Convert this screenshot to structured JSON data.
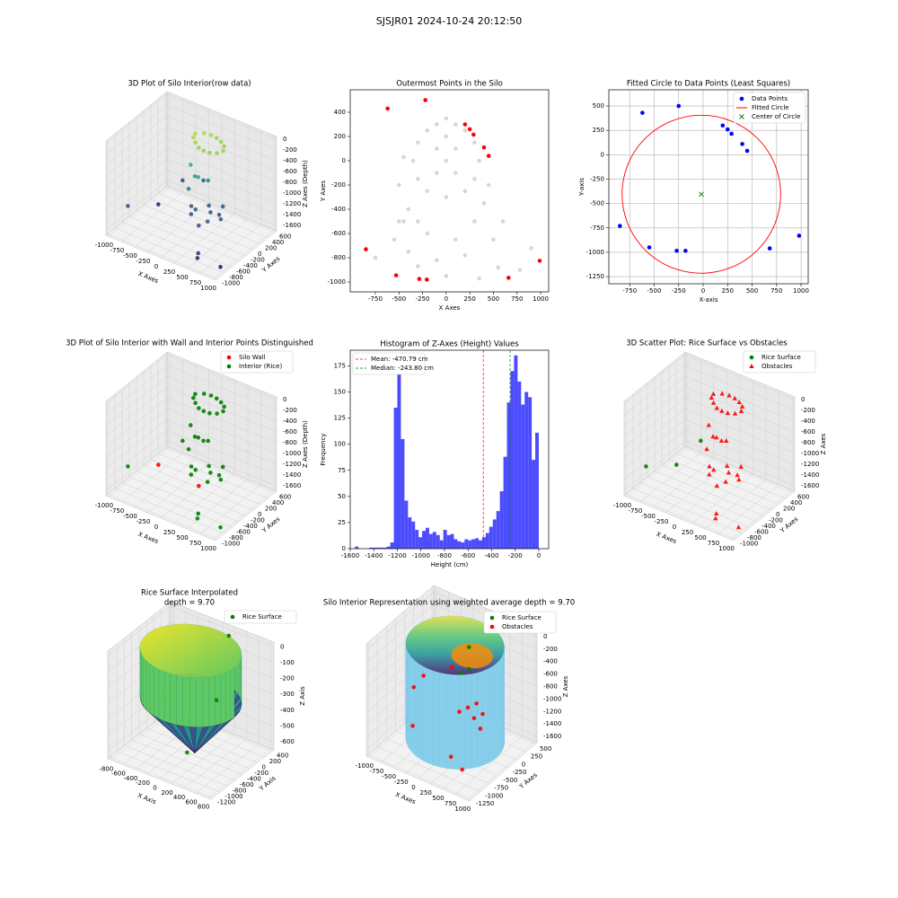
{
  "title": "SJSJR01 2024-10-24 20:12:50",
  "chart_data": [
    {
      "type": "scatter3d",
      "title": "3D Plot of Silo Interior(row data)",
      "xlabel": "X Axes",
      "ylabel": "Y Axes",
      "zlabel": "Z Axes (Depth)",
      "colormap": "viridis",
      "xlim": [
        -1050,
        1050
      ],
      "ylim": [
        -1050,
        650
      ],
      "zlim": [
        -1700,
        50
      ],
      "xticks": [
        -1000,
        -750,
        -500,
        -250,
        0,
        250,
        500,
        750,
        1000
      ],
      "yticks": [
        -1000,
        -800,
        -600,
        -400,
        -200,
        0,
        200,
        400,
        600
      ],
      "zticks": [
        -1600,
        -1400,
        -1200,
        -1000,
        -800,
        -600,
        -400,
        -200,
        0
      ],
      "series": [
        {
          "marker": "o",
          "x": [
            -200,
            -100,
            0,
            100,
            200,
            300,
            350,
            300,
            200,
            100,
            0,
            -100,
            -180,
            -150,
            0,
            150,
            -50,
            100,
            0,
            150,
            300,
            450,
            600,
            200,
            350,
            500,
            100,
            400,
            -850,
            -600,
            -700,
            -250,
            660,
            990,
            600
          ],
          "y": [
            200,
            300,
            350,
            360,
            340,
            280,
            180,
            80,
            20,
            0,
            10,
            60,
            120,
            0,
            -100,
            50,
            -200,
            -150,
            -200,
            -300,
            -100,
            -400,
            -250,
            0,
            -500,
            -150,
            -350,
            100,
            -730,
            430,
            -100,
            500,
            -965,
            -825,
            -900
          ],
          "z": [
            -150,
            -160,
            -180,
            -200,
            -220,
            -230,
            -240,
            -250,
            -250,
            -240,
            -230,
            -200,
            -170,
            -600,
            -700,
            -800,
            -900,
            -650,
            -1200,
            -1150,
            -1250,
            -1200,
            -1180,
            -1220,
            -1260,
            -1190,
            -1230,
            -1210,
            -1250,
            -1300,
            -1500,
            -1200,
            -1400,
            -1600,
            -1550
          ]
        }
      ]
    },
    {
      "type": "scatter",
      "title": "Outermost Points in the Silo",
      "xlabel": "X Axes",
      "ylabel": "Y Axes",
      "xlim": [
        -1016,
        1085
      ],
      "ylim": [
        -1081,
        585
      ],
      "xticks": [
        -750,
        -500,
        -250,
        0,
        250,
        500,
        750,
        1000
      ],
      "yticks": [
        -1000,
        -800,
        -600,
        -400,
        -200,
        0,
        200,
        400
      ],
      "series": [
        {
          "color": "lightgray",
          "marker": "o",
          "x": [
            0,
            -100,
            100,
            -200,
            200,
            -300,
            300,
            -350,
            350,
            -300,
            300,
            -200,
            200,
            0,
            0,
            -100,
            100,
            -100,
            100,
            0,
            -450,
            -500,
            450,
            -400,
            400,
            -300,
            300,
            -200,
            100,
            -450,
            -550,
            -400,
            -100,
            200,
            500,
            550,
            780,
            900,
            -750,
            -300,
            0,
            350,
            -500,
            600
          ],
          "y": [
            350,
            300,
            300,
            250,
            250,
            150,
            150,
            0,
            0,
            -150,
            -150,
            -250,
            -250,
            -300,
            0,
            100,
            100,
            -100,
            -100,
            200,
            30,
            -200,
            -200,
            -400,
            -350,
            -500,
            -500,
            -600,
            -650,
            -500,
            -650,
            -750,
            -820,
            -780,
            -650,
            -880,
            -900,
            -720,
            -800,
            -870,
            -950,
            -970,
            -500,
            -500
          ]
        },
        {
          "color": "red",
          "marker": "o",
          "x": [
            -620,
            -220,
            200,
            250,
            290,
            400,
            450,
            -850,
            -530,
            -285,
            -205,
            660,
            990
          ],
          "y": [
            430,
            500,
            300,
            260,
            215,
            110,
            40,
            -730,
            -945,
            -975,
            -980,
            -965,
            -825
          ]
        }
      ]
    },
    {
      "type": "scatter",
      "title": "Fitted Circle to Data Points (Least Squares)",
      "xlabel": "X-axis",
      "ylabel": "Y-axis",
      "grid": true,
      "legend": "upper right",
      "xlim": [
        -963,
        1073
      ],
      "ylim": [
        -1323,
        666
      ],
      "xticks": [
        -750,
        -500,
        -250,
        0,
        250,
        500,
        750,
        1000
      ],
      "yticks": [
        -1250,
        -1000,
        -750,
        -500,
        -250,
        0,
        250,
        500
      ],
      "series": [
        {
          "name": "Data Points",
          "color": "blue",
          "marker": "o",
          "x": [
            -620,
            -250,
            200,
            250,
            290,
            400,
            450,
            -850,
            -550,
            -270,
            -180,
            680,
            980
          ],
          "y": [
            430,
            500,
            300,
            260,
            215,
            110,
            40,
            -730,
            -950,
            -985,
            -985,
            -960,
            -830
          ]
        },
        {
          "name": "Center of Circle",
          "color": "green",
          "marker": "x",
          "x": [
            -18
          ],
          "y": [
            -405
          ]
        }
      ],
      "circle": {
        "name": "Fitted Circle",
        "color": "red",
        "center": [
          -18,
          -405
        ],
        "radius": 810
      }
    },
    {
      "type": "scatter3d",
      "title": "3D Plot of Silo Interior with Wall and Interior Points Distinguished",
      "xlabel": "X Axes",
      "ylabel": "Y Axes",
      "zlabel": "Z Axes (Depth)",
      "legend": "upper right",
      "xlim": [
        -1050,
        1050
      ],
      "ylim": [
        -1050,
        650
      ],
      "zlim": [
        -1700,
        50
      ],
      "xticks": [
        -1000,
        -750,
        -500,
        -250,
        0,
        250,
        500,
        750,
        1000
      ],
      "yticks": [
        -1000,
        -800,
        -600,
        -400,
        -200,
        0,
        200,
        400,
        600
      ],
      "zticks": [
        -1600,
        -1400,
        -1200,
        -1000,
        -800,
        -600,
        -400,
        -200,
        0
      ],
      "series": [
        {
          "name": "Silo Wall",
          "color": "red",
          "marker": "o",
          "x": [
            -700,
            350
          ],
          "y": [
            -100,
            -500
          ],
          "z": [
            -1500,
            -1260
          ]
        },
        {
          "name": "Interior (Rice)",
          "color": "green",
          "marker": "o",
          "x": [
            -200,
            -100,
            0,
            100,
            200,
            300,
            350,
            300,
            200,
            100,
            0,
            -100,
            -180,
            -150,
            0,
            150,
            -50,
            100,
            0,
            150,
            300,
            450,
            600,
            200,
            500,
            100,
            400,
            -850,
            -600,
            -250,
            660,
            990,
            600
          ],
          "y": [
            200,
            300,
            350,
            360,
            340,
            280,
            180,
            80,
            20,
            0,
            10,
            60,
            120,
            0,
            -100,
            50,
            -200,
            -150,
            -200,
            -300,
            -100,
            -400,
            -250,
            0,
            -150,
            -350,
            100,
            -730,
            430,
            500,
            -965,
            -825,
            -900
          ],
          "z": [
            -150,
            -160,
            -180,
            -200,
            -220,
            -230,
            -240,
            -250,
            -250,
            -240,
            -230,
            -200,
            -170,
            -600,
            -700,
            -800,
            -900,
            -650,
            -1200,
            -1150,
            -1250,
            -1200,
            -1180,
            -1220,
            -1190,
            -1230,
            -1210,
            -1250,
            -1300,
            -1200,
            -1400,
            -1600,
            -1550
          ]
        }
      ]
    },
    {
      "type": "histogram",
      "title": "Histogram of Z-Axes (Height) Values",
      "xlabel": "Height (cm)",
      "ylabel": "Frequency",
      "color": "#4c4cff",
      "legend": "upper left",
      "xlim": [
        -1600,
        84
      ],
      "ylim": [
        0,
        190
      ],
      "xticks": [
        -1600,
        -1400,
        -1200,
        -1000,
        -800,
        -600,
        -400,
        -200,
        0
      ],
      "yticks": [
        0,
        25,
        50,
        75,
        100,
        125,
        150,
        175
      ],
      "bins": [
        -1560,
        -1530,
        -1500,
        -1470,
        -1440,
        -1410,
        -1380,
        -1350,
        -1320,
        -1290,
        -1260,
        -1230,
        -1200,
        -1170,
        -1140,
        -1110,
        -1080,
        -1050,
        -1020,
        -990,
        -960,
        -930,
        -900,
        -870,
        -840,
        -810,
        -780,
        -750,
        -720,
        -690,
        -660,
        -630,
        -600,
        -570,
        -540,
        -510,
        -480,
        -450,
        -420,
        -390,
        -360,
        -330,
        -300,
        -270,
        -240,
        -210,
        -180,
        -150,
        -120,
        -90,
        -60,
        -30,
        0
      ],
      "counts": [
        2,
        0,
        0,
        0,
        1,
        1,
        1,
        1,
        1,
        2,
        6,
        135,
        172,
        105,
        46,
        30,
        26,
        18,
        11,
        17,
        20,
        14,
        16,
        13,
        8,
        18,
        13,
        14,
        9,
        7,
        6,
        9,
        8,
        9,
        10,
        8,
        11,
        15,
        21,
        28,
        36,
        55,
        88,
        140,
        170,
        185,
        160,
        138,
        150,
        145,
        85,
        111
      ],
      "mean": {
        "value": -470.79,
        "label": "Mean: -470.79 cm",
        "color": "red"
      },
      "median": {
        "value": -243.8,
        "label": "Median: -243.80 cm",
        "color": "green"
      }
    },
    {
      "type": "scatter3d",
      "title": "3D Scatter Plot: Rice Surface vs Obstacles",
      "xlabel": "X Axes",
      "ylabel": "Y Axes",
      "zlabel": "Z Axes",
      "legend": "upper right",
      "xlim": [
        -1050,
        1050
      ],
      "ylim": [
        -1050,
        650
      ],
      "zlim": [
        -1700,
        50
      ],
      "xticks": [
        -1000,
        -750,
        -500,
        -250,
        0,
        250,
        500,
        750,
        1000
      ],
      "yticks": [
        -1000,
        -800,
        -600,
        -400,
        -200,
        0,
        200,
        400,
        600
      ],
      "zticks": [
        -1600,
        -1400,
        -1200,
        -1000,
        -800,
        -600,
        -400,
        -200,
        0
      ],
      "series": [
        {
          "name": "Rice Surface",
          "color": "green",
          "marker": "o",
          "x": [
            -700,
            -600,
            -850
          ],
          "y": [
            -100,
            430,
            -730
          ],
          "z": [
            -1500,
            -1300,
            -1250
          ]
        },
        {
          "name": "Obstacles",
          "color": "red",
          "marker": "^",
          "x": [
            -200,
            -100,
            0,
            100,
            200,
            300,
            350,
            300,
            200,
            100,
            0,
            -100,
            -180,
            -150,
            0,
            150,
            -50,
            100,
            0,
            150,
            300,
            450,
            600,
            200,
            350,
            500,
            100,
            400,
            -250,
            660,
            990,
            600
          ],
          "y": [
            200,
            300,
            350,
            360,
            340,
            280,
            180,
            80,
            20,
            0,
            10,
            60,
            120,
            0,
            -100,
            50,
            -200,
            -150,
            -200,
            -300,
            -100,
            -400,
            -250,
            0,
            -500,
            -150,
            -350,
            100,
            500,
            -965,
            -825,
            -900
          ],
          "z": [
            -150,
            -160,
            -180,
            -200,
            -220,
            -230,
            -240,
            -250,
            -250,
            -240,
            -230,
            -200,
            -170,
            -600,
            -700,
            -800,
            -900,
            -650,
            -1200,
            -1150,
            -1250,
            -1200,
            -1180,
            -1220,
            -1260,
            -1190,
            -1230,
            -1210,
            -1200,
            -1400,
            -1600,
            -1550
          ]
        }
      ]
    },
    {
      "type": "surface3d",
      "title": [
        "Rice Surface Interpolated",
        "depth = 9.70"
      ],
      "xlabel": "X Axis",
      "ylabel": "Y Axis",
      "zlabel": "Z Axis",
      "legend": "upper right",
      "xlim": [
        -850,
        850
      ],
      "ylim": [
        -1250,
        450
      ],
      "zlim": [
        -650,
        30
      ],
      "xticks": [
        -800,
        -600,
        -400,
        -200,
        0,
        200,
        400,
        600,
        800
      ],
      "yticks": [
        -1200,
        -1000,
        -800,
        -600,
        -400,
        -200,
        0,
        200,
        400
      ],
      "zticks": [
        -600,
        -500,
        -400,
        -300,
        -200,
        -100,
        0
      ],
      "series": [
        {
          "name": "Rice Surface",
          "color": "green",
          "marker": "o",
          "x": [
            200,
            300,
            0
          ],
          "y": [
            300,
            -200,
            -500
          ],
          "z": [
            0,
            -300,
            -620
          ]
        }
      ]
    },
    {
      "type": "cylinder3d",
      "title": "Silo Interior Representation using weighted average depth = 9.70",
      "xlabel": "X Axes",
      "ylabel": "Y Axes",
      "zlabel": "Z Axes",
      "legend": "upper right",
      "xlim": [
        -1050,
        1050
      ],
      "ylim": [
        -1300,
        550
      ],
      "zlim": [
        -1700,
        100
      ],
      "xticks": [
        -1000,
        -750,
        -500,
        -250,
        0,
        250,
        500,
        750,
        1000
      ],
      "yticks": [
        -1250,
        -1000,
        -750,
        -500,
        -250,
        0,
        250,
        500
      ],
      "zticks": [
        -1600,
        -1400,
        -1200,
        -1000,
        -800,
        -600,
        -400,
        -200,
        0
      ],
      "series": [
        {
          "name": "Rice Surface",
          "color": "green",
          "marker": "o",
          "x": [
            0,
            150,
            -100
          ],
          "y": [
            100,
            -100,
            0
          ],
          "z": [
            -300,
            -500,
            -700
          ]
        },
        {
          "name": "Obstacles",
          "color": "red",
          "marker": "o",
          "x": [
            -900,
            -850,
            -700,
            -500,
            100,
            200,
            300,
            400,
            500,
            600,
            300,
            750
          ],
          "y": [
            -200,
            0,
            -500,
            300,
            -300,
            -200,
            -100,
            -300,
            -200,
            -400,
            -800,
            -1100
          ],
          "z": [
            -1100,
            -1000,
            -1500,
            -900,
            -1100,
            -1050,
            -1000,
            -1100,
            -1050,
            -1150,
            -1500,
            -1400
          ]
        }
      ]
    }
  ]
}
